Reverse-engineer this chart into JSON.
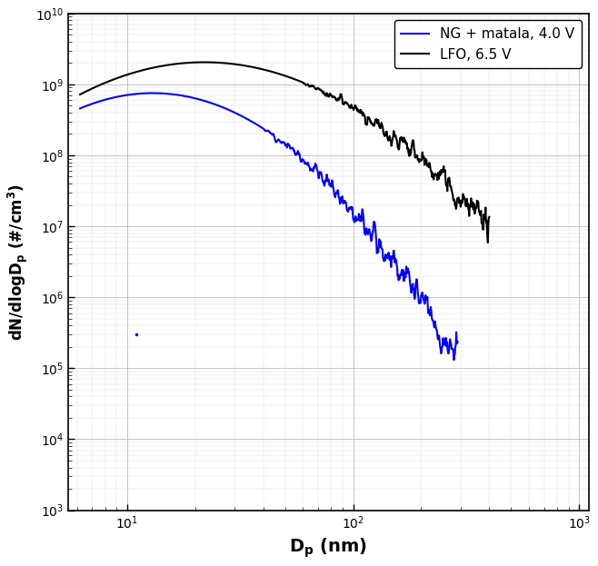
{
  "ylabel": "dN/dlogD_p (#/cm³)",
  "xlabel": "D_p (nm)",
  "xlim": [
    5.5,
    1100
  ],
  "ylim": [
    1000.0,
    10000000000.0
  ],
  "legend_ng": "NG + matala, 4.0 V",
  "legend_lfo": "LFO, 6.5 V",
  "color_ng": "#0000FF",
  "color_lfo": "#000000",
  "bg_color": "#ffffff",
  "grid_color": "#cccccc",
  "linewidth": 1.5
}
